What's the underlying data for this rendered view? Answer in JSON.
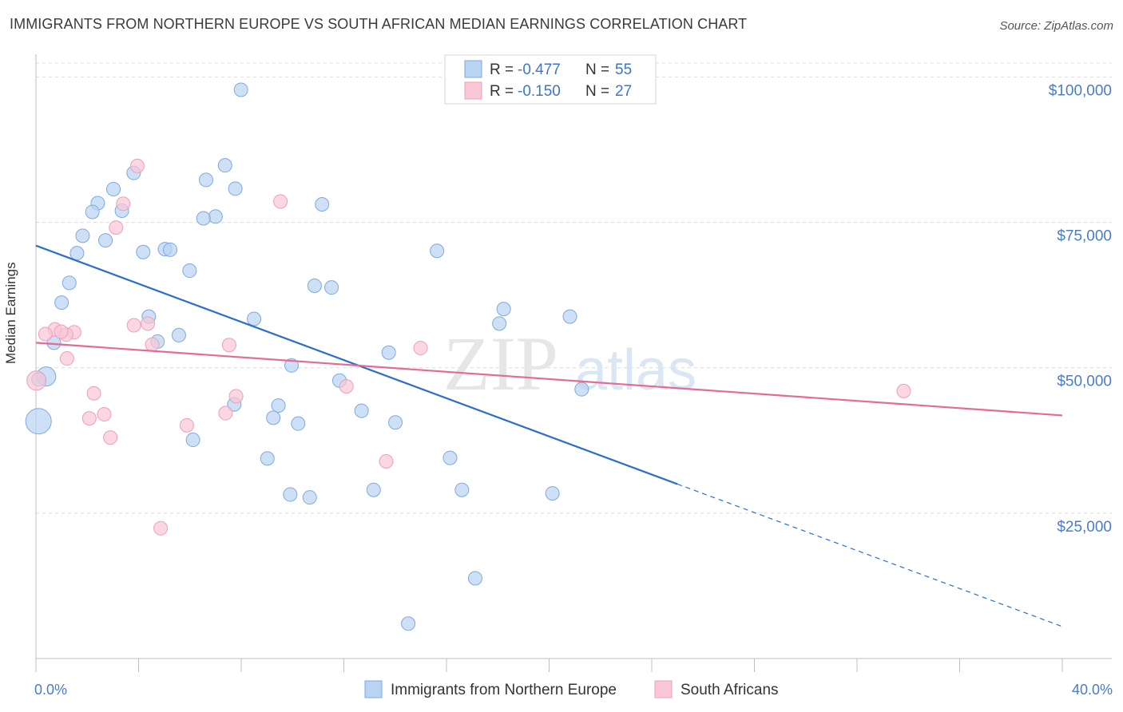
{
  "title": "IMMIGRANTS FROM NORTHERN EUROPE VS SOUTH AFRICAN MEDIAN EARNINGS CORRELATION CHART",
  "source": "Source: ZipAtlas.com",
  "watermark": {
    "zip": "ZIP",
    "atlas": "atlas"
  },
  "legend_box": {
    "rows": [
      {
        "r_label": "R =",
        "r_value": "-0.477",
        "n_label": "N =",
        "n_value": "55"
      },
      {
        "r_label": "R =",
        "r_value": "-0.150",
        "n_label": "N =",
        "n_value": "27"
      }
    ]
  },
  "bottom_legend": [
    "Immigrants from Northern Europe",
    "South Africans"
  ],
  "chart_data": {
    "type": "scatter",
    "title": "IMMIGRANTS FROM NORTHERN EUROPE VS SOUTH AFRICAN MEDIAN EARNINGS CORRELATION CHART",
    "xlabel": "",
    "ylabel": "Median Earnings",
    "xlim": [
      0,
      40
    ],
    "ylim": [
      0,
      105000
    ],
    "x_tick_labels": [
      "0.0%",
      "40.0%"
    ],
    "y_ticks": [
      25000,
      50000,
      75000,
      100000
    ],
    "y_tick_labels": [
      "$25,000",
      "$50,000",
      "$75,000",
      "$100,000"
    ],
    "grid": true,
    "legend_position": "top-center",
    "colors": {
      "blue_fill": "#b9d3f2",
      "blue_stroke": "#7ea9de",
      "blue_line": "#2a6fcf",
      "pink_fill": "#f8c6d5",
      "pink_stroke": "#eda0b8",
      "pink_line": "#e46b93"
    },
    "series": [
      {
        "name": "Immigrants from Northern Europe",
        "color": "blue",
        "trend": {
          "x0": 0,
          "y0": 71000,
          "x1": 25,
          "y1": 30000,
          "x_dash_end": 40,
          "y_dash_end": 5500
        },
        "points": [
          {
            "x": 7.99,
            "y": 97800,
            "s": 1
          },
          {
            "x": 7.37,
            "y": 84800,
            "s": 1
          },
          {
            "x": 3.81,
            "y": 83500,
            "s": 1
          },
          {
            "x": 6.63,
            "y": 82300,
            "s": 1
          },
          {
            "x": 7.77,
            "y": 80800,
            "s": 1
          },
          {
            "x": 3.02,
            "y": 80700,
            "s": 1
          },
          {
            "x": 2.41,
            "y": 78300,
            "s": 1
          },
          {
            "x": 11.15,
            "y": 78100,
            "s": 1
          },
          {
            "x": 2.2,
            "y": 76800,
            "s": 1
          },
          {
            "x": 3.35,
            "y": 77000,
            "s": 1
          },
          {
            "x": 7.0,
            "y": 76000,
            "s": 1
          },
          {
            "x": 6.53,
            "y": 75700,
            "s": 1
          },
          {
            "x": 1.82,
            "y": 72700,
            "s": 1
          },
          {
            "x": 2.71,
            "y": 71900,
            "s": 1
          },
          {
            "x": 5.03,
            "y": 70400,
            "s": 1
          },
          {
            "x": 5.23,
            "y": 70300,
            "s": 1
          },
          {
            "x": 15.63,
            "y": 70100,
            "s": 1
          },
          {
            "x": 1.6,
            "y": 69700,
            "s": 1
          },
          {
            "x": 4.18,
            "y": 69900,
            "s": 1
          },
          {
            "x": 5.99,
            "y": 66700,
            "s": 1
          },
          {
            "x": 1.3,
            "y": 64600,
            "s": 1
          },
          {
            "x": 10.86,
            "y": 64100,
            "s": 1
          },
          {
            "x": 11.52,
            "y": 63800,
            "s": 1
          },
          {
            "x": 1.0,
            "y": 61200,
            "s": 1
          },
          {
            "x": 18.23,
            "y": 60100,
            "s": 1
          },
          {
            "x": 20.81,
            "y": 58800,
            "s": 1
          },
          {
            "x": 4.4,
            "y": 58800,
            "s": 1
          },
          {
            "x": 8.5,
            "y": 58400,
            "s": 1
          },
          {
            "x": 18.06,
            "y": 57600,
            "s": 1
          },
          {
            "x": 5.57,
            "y": 55600,
            "s": 1
          },
          {
            "x": 4.74,
            "y": 54500,
            "s": 1
          },
          {
            "x": 0.7,
            "y": 54300,
            "s": 1
          },
          {
            "x": 13.75,
            "y": 52600,
            "s": 1
          },
          {
            "x": 9.96,
            "y": 50400,
            "s": 1
          },
          {
            "x": 0.4,
            "y": 48500,
            "s": 2
          },
          {
            "x": 11.83,
            "y": 47800,
            "s": 1
          },
          {
            "x": 21.27,
            "y": 46300,
            "s": 1
          },
          {
            "x": 7.73,
            "y": 43700,
            "s": 1
          },
          {
            "x": 9.45,
            "y": 43500,
            "s": 1
          },
          {
            "x": 12.69,
            "y": 42600,
            "s": 1
          },
          {
            "x": 9.25,
            "y": 41400,
            "s": 1
          },
          {
            "x": 10.22,
            "y": 40400,
            "s": 1
          },
          {
            "x": 14.01,
            "y": 40600,
            "s": 1
          },
          {
            "x": 0.1,
            "y": 40800,
            "s": 3
          },
          {
            "x": 6.12,
            "y": 37600,
            "s": 1
          },
          {
            "x": 9.02,
            "y": 34400,
            "s": 1
          },
          {
            "x": 16.14,
            "y": 34500,
            "s": 1
          },
          {
            "x": 13.16,
            "y": 29000,
            "s": 1
          },
          {
            "x": 16.6,
            "y": 29000,
            "s": 1
          },
          {
            "x": 20.13,
            "y": 28400,
            "s": 1
          },
          {
            "x": 9.91,
            "y": 28200,
            "s": 1
          },
          {
            "x": 10.67,
            "y": 27700,
            "s": 1
          },
          {
            "x": 17.12,
            "y": 13800,
            "s": 1
          },
          {
            "x": 14.51,
            "y": 6000,
            "s": 1
          },
          {
            "x": 0.1,
            "y": 48000,
            "s": 1
          }
        ]
      },
      {
        "name": "South Africans",
        "color": "pink",
        "trend": {
          "x0": 0,
          "y0": 54300,
          "x1": 40,
          "y1": 41800
        },
        "points": [
          {
            "x": 3.95,
            "y": 84700,
            "s": 1
          },
          {
            "x": 9.53,
            "y": 78600,
            "s": 1
          },
          {
            "x": 3.4,
            "y": 78200,
            "s": 1
          },
          {
            "x": 3.12,
            "y": 74100,
            "s": 1
          },
          {
            "x": 3.82,
            "y": 57300,
            "s": 1
          },
          {
            "x": 4.36,
            "y": 57600,
            "s": 1
          },
          {
            "x": 0.74,
            "y": 56600,
            "s": 1
          },
          {
            "x": 1.49,
            "y": 56100,
            "s": 1
          },
          {
            "x": 0.37,
            "y": 55800,
            "s": 1
          },
          {
            "x": 1.18,
            "y": 55700,
            "s": 1
          },
          {
            "x": 0.98,
            "y": 56200,
            "s": 1
          },
          {
            "x": 4.53,
            "y": 54000,
            "s": 1
          },
          {
            "x": 7.53,
            "y": 53900,
            "s": 1
          },
          {
            "x": 14.99,
            "y": 53400,
            "s": 1
          },
          {
            "x": 1.21,
            "y": 51600,
            "s": 1
          },
          {
            "x": 0.02,
            "y": 47800,
            "s": 2
          },
          {
            "x": 12.1,
            "y": 46800,
            "s": 1
          },
          {
            "x": 33.82,
            "y": 46000,
            "s": 1
          },
          {
            "x": 2.26,
            "y": 45600,
            "s": 1
          },
          {
            "x": 7.8,
            "y": 45100,
            "s": 1
          },
          {
            "x": 7.39,
            "y": 42200,
            "s": 1
          },
          {
            "x": 2.66,
            "y": 42000,
            "s": 1
          },
          {
            "x": 2.08,
            "y": 41300,
            "s": 1
          },
          {
            "x": 5.88,
            "y": 40100,
            "s": 1
          },
          {
            "x": 2.9,
            "y": 38000,
            "s": 1
          },
          {
            "x": 13.65,
            "y": 33900,
            "s": 1
          },
          {
            "x": 4.86,
            "y": 22400,
            "s": 1
          }
        ]
      }
    ]
  }
}
